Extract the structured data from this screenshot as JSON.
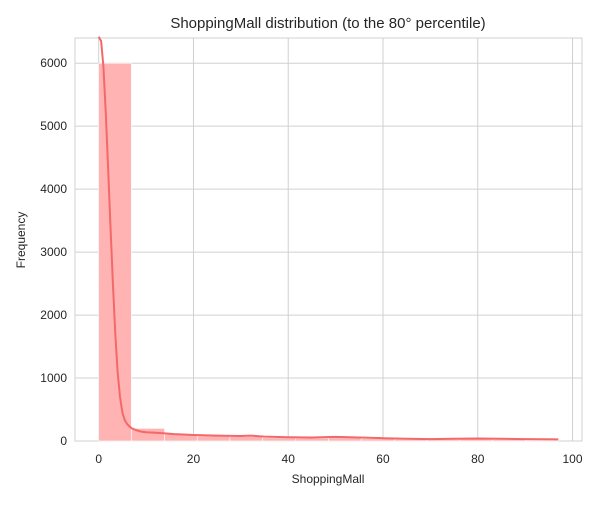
{
  "chart_data": {
    "type": "bar",
    "title": "ShoppingMall distribution (to the 80° percentile)",
    "xlabel": "ShoppingMall",
    "ylabel": "Frequency",
    "xlim": [
      -5,
      102
    ],
    "ylim": [
      0,
      6400
    ],
    "x_ticks": [
      0,
      20,
      40,
      60,
      80,
      100
    ],
    "y_ticks": [
      0,
      1000,
      2000,
      3000,
      4000,
      5000,
      6000
    ],
    "grid": true,
    "bins": [
      {
        "start": 0.0,
        "end": 6.9,
        "value": 6000
      },
      {
        "start": 6.9,
        "end": 13.9,
        "value": 200
      },
      {
        "start": 13.9,
        "end": 20.8,
        "value": 110
      },
      {
        "start": 20.8,
        "end": 27.7,
        "value": 80
      },
      {
        "start": 27.7,
        "end": 34.6,
        "value": 70
      },
      {
        "start": 34.6,
        "end": 41.6,
        "value": 50
      },
      {
        "start": 41.6,
        "end": 48.5,
        "value": 45
      },
      {
        "start": 48.5,
        "end": 55.4,
        "value": 50
      },
      {
        "start": 55.4,
        "end": 62.4,
        "value": 35
      },
      {
        "start": 62.4,
        "end": 69.3,
        "value": 25
      },
      {
        "start": 69.3,
        "end": 76.2,
        "value": 25
      },
      {
        "start": 76.2,
        "end": 83.1,
        "value": 35
      },
      {
        "start": 83.1,
        "end": 90.1,
        "value": 25
      },
      {
        "start": 90.1,
        "end": 97.0,
        "value": 15
      }
    ],
    "kde": {
      "x": [
        0,
        0.5,
        1,
        1.5,
        2,
        2.5,
        3,
        3.5,
        4,
        4.5,
        5,
        5.5,
        6,
        6.5,
        7,
        8,
        9,
        10,
        12,
        14,
        16,
        20,
        25,
        30,
        32,
        35,
        40,
        45,
        50,
        55,
        60,
        65,
        70,
        75,
        80,
        85,
        90,
        97
      ],
      "y": [
        6420,
        6350,
        5950,
        5200,
        4300,
        3400,
        2500,
        1700,
        1100,
        700,
        450,
        330,
        270,
        230,
        200,
        170,
        150,
        140,
        130,
        120,
        110,
        95,
        85,
        80,
        85,
        70,
        60,
        55,
        65,
        55,
        45,
        35,
        30,
        35,
        40,
        35,
        30,
        25
      ]
    },
    "colors": {
      "bar": "#ffb3b3",
      "line": "#f36868"
    }
  }
}
